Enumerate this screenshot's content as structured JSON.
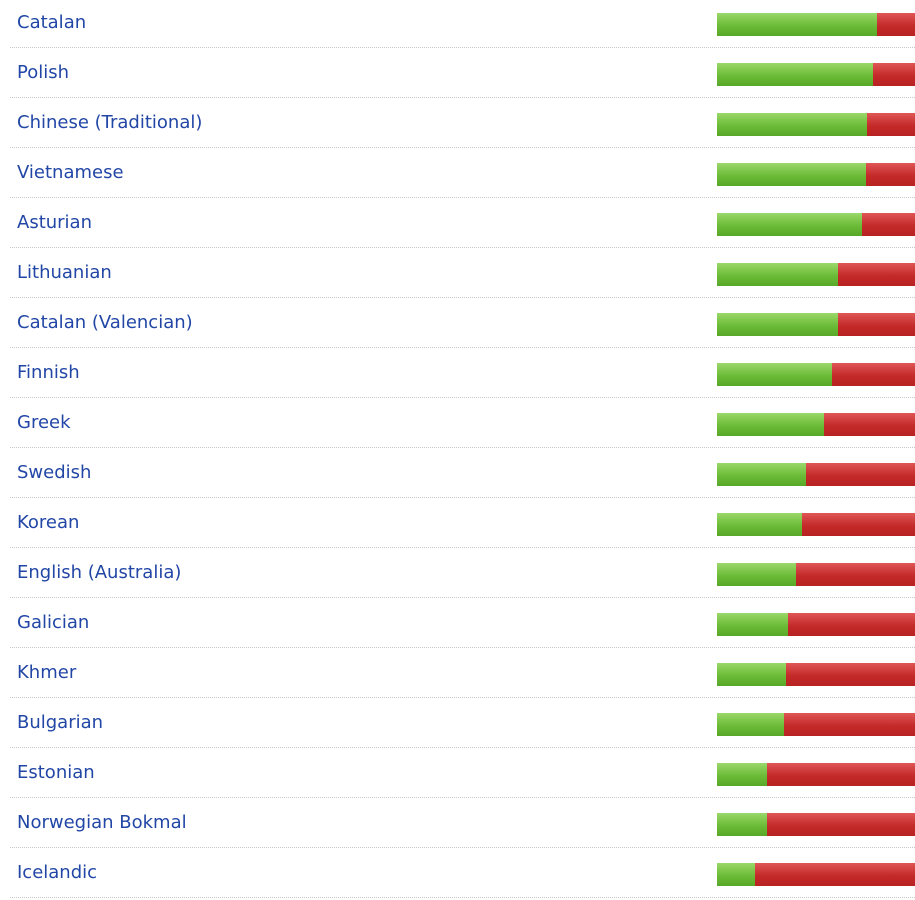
{
  "xlim": [
    0,
    100
  ],
  "languages": [
    {
      "name": "Catalan",
      "translated": 81
    },
    {
      "name": "Polish",
      "translated": 79
    },
    {
      "name": "Chinese (Traditional)",
      "translated": 76
    },
    {
      "name": "Vietnamese",
      "translated": 75
    },
    {
      "name": "Asturian",
      "translated": 73
    },
    {
      "name": "Lithuanian",
      "translated": 61
    },
    {
      "name": "Catalan (Valencian)",
      "translated": 61
    },
    {
      "name": "Finnish",
      "translated": 58
    },
    {
      "name": "Greek",
      "translated": 54
    },
    {
      "name": "Swedish",
      "translated": 45
    },
    {
      "name": "Korean",
      "translated": 43
    },
    {
      "name": "English (Australia)",
      "translated": 40
    },
    {
      "name": "Galician",
      "translated": 36
    },
    {
      "name": "Khmer",
      "translated": 35
    },
    {
      "name": "Bulgarian",
      "translated": 34
    },
    {
      "name": "Estonian",
      "translated": 25
    },
    {
      "name": "Norwegian Bokmal",
      "translated": 25
    },
    {
      "name": "Icelandic",
      "translated": 19
    }
  ]
}
